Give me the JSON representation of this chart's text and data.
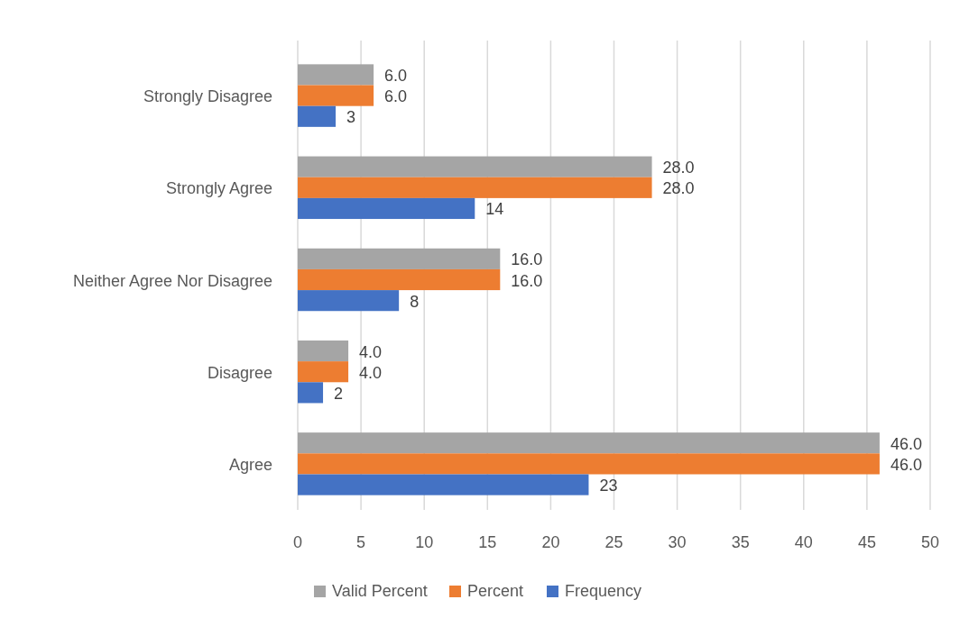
{
  "chart_data": {
    "type": "bar",
    "orientation": "horizontal",
    "categories": [
      "Strongly Disagree",
      "Strongly Agree",
      "Neither Agree Nor Disagree",
      "Disagree",
      "Agree"
    ],
    "series": [
      {
        "name": "Valid Percent",
        "color": "#a5a5a5",
        "values": [
          6,
          28,
          16,
          4,
          46
        ],
        "value_labels": [
          "6.0",
          "28.0",
          "16.0",
          "4.0",
          "46.0"
        ]
      },
      {
        "name": "Percent",
        "color": "#ed7d31",
        "values": [
          6,
          28,
          16,
          4,
          46
        ],
        "value_labels": [
          "6.0",
          "28.0",
          "16.0",
          "4.0",
          "46.0"
        ]
      },
      {
        "name": "Frequency",
        "color": "#4472c4",
        "values": [
          3,
          14,
          8,
          2,
          23
        ],
        "value_labels": [
          "3",
          "14",
          "8",
          "2",
          "23"
        ]
      }
    ],
    "xlim": [
      0,
      50
    ],
    "xticks": [
      0,
      5,
      10,
      15,
      20,
      25,
      30,
      35,
      40,
      45,
      50
    ],
    "grid": "x",
    "legend": "bottom"
  }
}
